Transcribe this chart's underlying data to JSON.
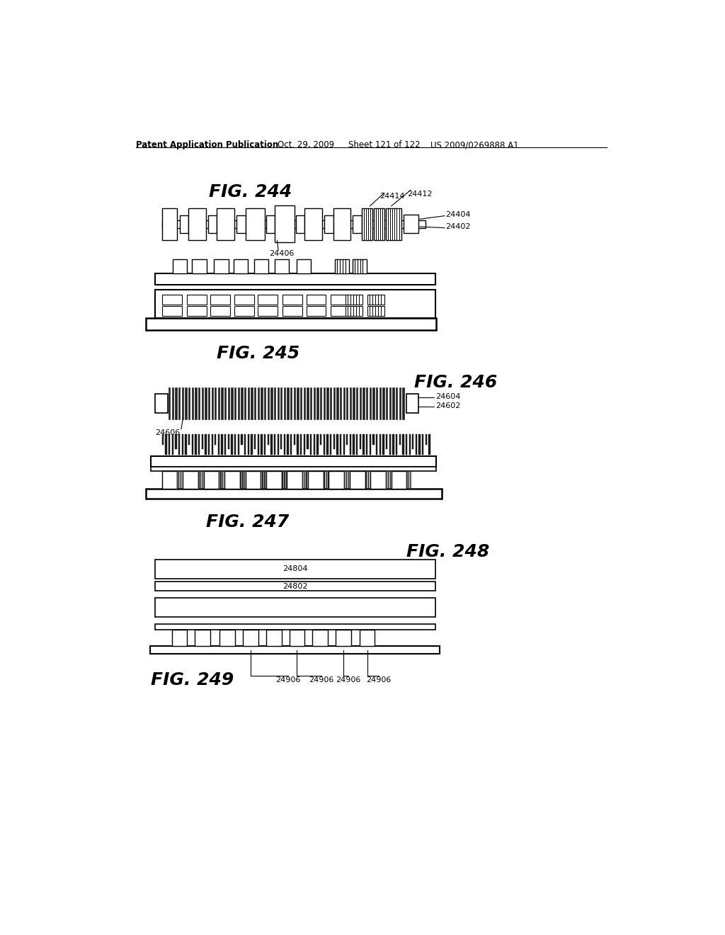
{
  "bg_color": "#ffffff",
  "header_text": "Patent Application Publication",
  "header_date": "Oct. 29, 2009",
  "header_sheet": "Sheet 121 of 122",
  "header_patent": "US 2009/0269888 A1",
  "fig244_label": "FIG. 244",
  "fig245_label": "FIG. 245",
  "fig246_label": "FIG. 246",
  "fig247_label": "FIG. 247",
  "fig248_label": "FIG. 248",
  "fig249_label": "FIG. 249",
  "ref_24402": "24402",
  "ref_24404": "24404",
  "ref_24406": "24406",
  "ref_24412": "24412",
  "ref_24414": "24414",
  "ref_24602": "24602",
  "ref_24604": "24604",
  "ref_24606": "24606",
  "ref_24804": "24804",
  "ref_24802": "24802",
  "ref_24906": "24906"
}
